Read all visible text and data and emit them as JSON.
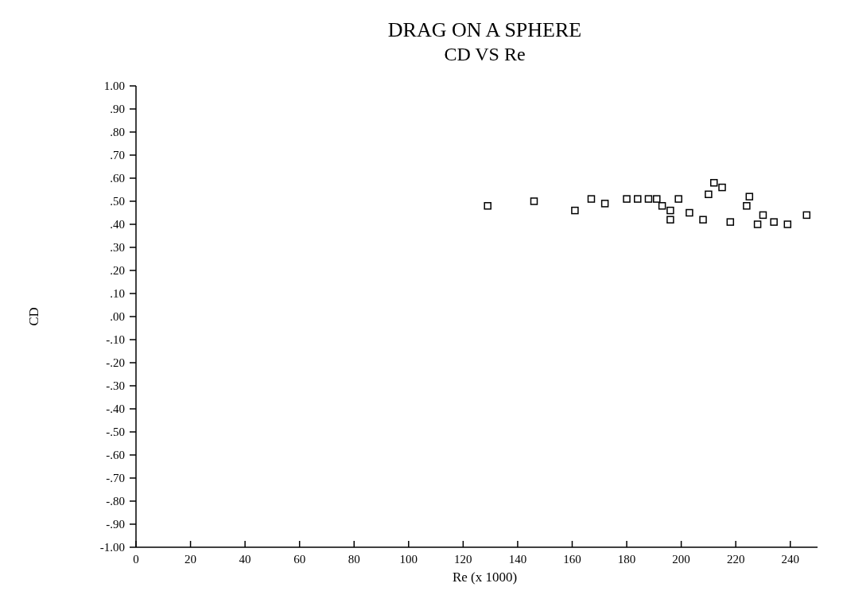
{
  "chart_data": {
    "type": "scatter",
    "title": "DRAG ON A SPHERE",
    "subtitle": "CD VS Re",
    "xlabel": "Re (x 1000)",
    "ylabel": "CD",
    "x": [
      129,
      146,
      161,
      167,
      172,
      180,
      184,
      188,
      191,
      193,
      196,
      196,
      199,
      203,
      208,
      210,
      212,
      215,
      218,
      224,
      225,
      230,
      228,
      234,
      239,
      246
    ],
    "series": [
      {
        "color": "#000000",
        "values": [
          0.48,
          0.5,
          0.46,
          0.51,
          0.49,
          0.51,
          0.51,
          0.51,
          0.51,
          0.48,
          0.46,
          0.42,
          0.51,
          0.45,
          0.42,
          0.53,
          0.58,
          0.56,
          0.41,
          0.48,
          0.52,
          0.44,
          0.4,
          0.41,
          0.4,
          0.44
        ]
      }
    ],
    "marker": "square",
    "grid": false,
    "xlim": [
      0,
      250
    ],
    "xticks": [
      0,
      20,
      40,
      60,
      80,
      100,
      120,
      140,
      160,
      180,
      200,
      220,
      240
    ],
    "ylim": [
      -1,
      1
    ],
    "yticks": [
      {
        "value": 1,
        "label": "1.00"
      },
      {
        "value": 0.9,
        "label": ".90"
      },
      {
        "value": 0.8,
        "label": ".80"
      },
      {
        "value": 0.7,
        "label": ".70"
      },
      {
        "value": 0.6,
        "label": ".60"
      },
      {
        "value": 0.5,
        "label": ".50"
      },
      {
        "value": 0.4,
        "label": ".40"
      },
      {
        "value": 0.3,
        "label": ".30"
      },
      {
        "value": 0.2,
        "label": ".20"
      },
      {
        "value": 0.1,
        "label": ".10"
      },
      {
        "value": 0,
        "label": ".00"
      },
      {
        "value": -0.1,
        "label": "-.10"
      },
      {
        "value": -0.2,
        "label": "-.20"
      },
      {
        "value": -0.3,
        "label": "-.30"
      },
      {
        "value": -0.4,
        "label": "-.40"
      },
      {
        "value": -0.5,
        "label": "-.50"
      },
      {
        "value": -0.6,
        "label": "-.60"
      },
      {
        "value": -0.7,
        "label": "-.70"
      },
      {
        "value": -0.8,
        "label": "-.80"
      },
      {
        "value": -0.9,
        "label": "-.90"
      },
      {
        "value": -1,
        "label": "-1.00"
      }
    ]
  }
}
